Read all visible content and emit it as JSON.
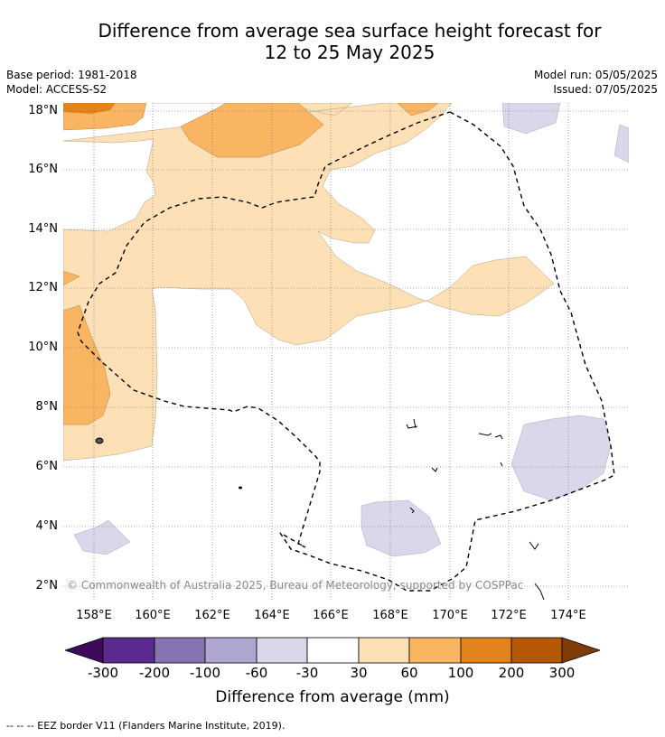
{
  "title_line1": "Difference from average sea surface height forecast for",
  "title_line2": "12 to 25 May 2025",
  "meta_left": {
    "base_period": "Base period: 1981-2018",
    "model": "Model: ACCESS-S2"
  },
  "meta_right": {
    "model_run": "Model run: 05/05/2025",
    "issued": "Issued: 07/05/2025"
  },
  "copyright": "© Commonwealth of Australia 2025, Bureau of Meteorology, supported by COSPPac",
  "lat_labels": [
    "18°N",
    "16°N",
    "14°N",
    "12°N",
    "10°N",
    "8°N",
    "6°N",
    "4°N",
    "2°N"
  ],
  "lon_labels": [
    "158°E",
    "160°E",
    "162°E",
    "164°E",
    "166°E",
    "168°E",
    "170°E",
    "172°E",
    "174°E"
  ],
  "colorbar": {
    "ticks": [
      "-300",
      "-200",
      "-100",
      "-60",
      "-30",
      "30",
      "60",
      "100",
      "200",
      "300"
    ],
    "colors": [
      "#3d0a5a",
      "#5a2a8e",
      "#8673b2",
      "#afa6d1",
      "#d8d8ea",
      "#ffffff",
      "#fde0b6",
      "#f9b562",
      "#e3831c",
      "#b45806",
      "#7f3b08"
    ],
    "label": "Difference from average (mm)"
  },
  "legend_note": "--  --  -- EEZ border V11 (Flanders Marine Institute, 2019)."
}
